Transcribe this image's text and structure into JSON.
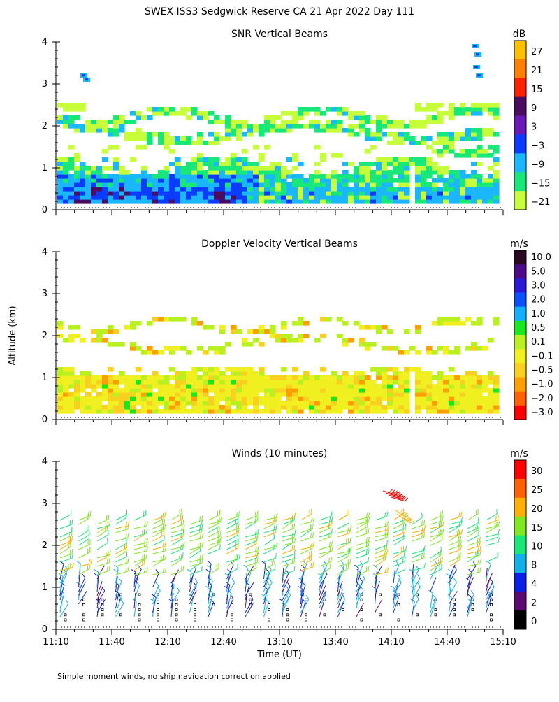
{
  "title": "SWEX ISS3 Sedgwick Reserve CA  21 Apr 2022 Day 111",
  "ylabel_shared": "Altitude (km)",
  "xlabel": "Time (UT)",
  "footnote": "Simple moment winds, no ship navigation correction applied",
  "x_tick_labels": [
    "11:10",
    "11:40",
    "12:10",
    "12:40",
    "13:10",
    "13:40",
    "14:10",
    "14:40",
    "15:10"
  ],
  "chart_data": [
    {
      "type": "heatmap",
      "title": "SNR Vertical Beams",
      "ylabel": "Altitude (km)",
      "ylim": [
        0,
        4
      ],
      "yticks": [
        "0",
        "1",
        "2",
        "3",
        "4"
      ],
      "colorbar_unit": "dB",
      "colorbar_labels": [
        "27",
        "21",
        "15",
        "9",
        "3",
        "−3",
        "−9",
        "−15",
        "−21"
      ],
      "colorbar_colors": [
        "#ffc000",
        "#ff8000",
        "#ff2000",
        "#4b0d5f",
        "#6a19b8",
        "#0a3cff",
        "#1ab7ff",
        "#18e87a",
        "#c6ff3a"
      ],
      "layers": [
        {
          "altitude_km": [
            0.1,
            0.4
          ],
          "level": "-3 to 3",
          "description": "strongest returns, low levels early"
        },
        {
          "altitude_km": [
            0.1,
            1.2
          ],
          "level": "-15 to -9",
          "description": "boundary layer"
        },
        {
          "altitude_km": [
            1.5,
            2.5
          ],
          "level": "-21 to -15",
          "description": "elevated layer"
        }
      ]
    },
    {
      "type": "heatmap",
      "title": "Doppler Velocity Vertical Beams",
      "ylabel": "Altitude (km)",
      "ylim": [
        0,
        4
      ],
      "yticks": [
        "0",
        "1",
        "2",
        "3",
        "4"
      ],
      "colorbar_unit": "m/s",
      "colorbar_labels": [
        "10.0",
        "5.0",
        "3.0",
        "2.0",
        "1.0",
        "0.5",
        "0.1",
        "−0.1",
        "−0.5",
        "−1.0",
        "−2.0",
        "−3.0"
      ],
      "colorbar_colors": [
        "#2a0a20",
        "#4a0a8a",
        "#2a1ad8",
        "#0a50ff",
        "#10b0ff",
        "#18e820",
        "#b8f020",
        "#f0f020",
        "#f8d020",
        "#ffa000",
        "#ff6000",
        "#ff0000"
      ],
      "dominant_value": "-0.1 to 0.1"
    },
    {
      "type": "barbs",
      "title": "Winds (10 minutes)",
      "ylabel": "Altitude (km)",
      "ylim": [
        0,
        4
      ],
      "yticks": [
        "0",
        "1",
        "2",
        "3",
        "4"
      ],
      "colorbar_unit": "m/s",
      "colorbar_labels": [
        "30",
        "25",
        "20",
        "15",
        "10",
        "8",
        "4",
        "2",
        "0"
      ],
      "colorbar_colors": [
        "#ff0000",
        "#ff6000",
        "#ffb000",
        "#80e820",
        "#18e878",
        "#10b0e8",
        "#0a20e8",
        "#5a0a70",
        "#000000"
      ],
      "profiles_per_interval_min": 10,
      "speed_ranges": [
        {
          "altitude_km": [
            0.2,
            1.3
          ],
          "speed_ms": [
            2,
            8
          ]
        },
        {
          "altitude_km": [
            1.4,
            2.7
          ],
          "speed_ms": [
            10,
            20
          ]
        },
        {
          "altitude_km": [
            3.0,
            3.4
          ],
          "speed_ms": [
            25,
            30
          ]
        }
      ]
    }
  ]
}
